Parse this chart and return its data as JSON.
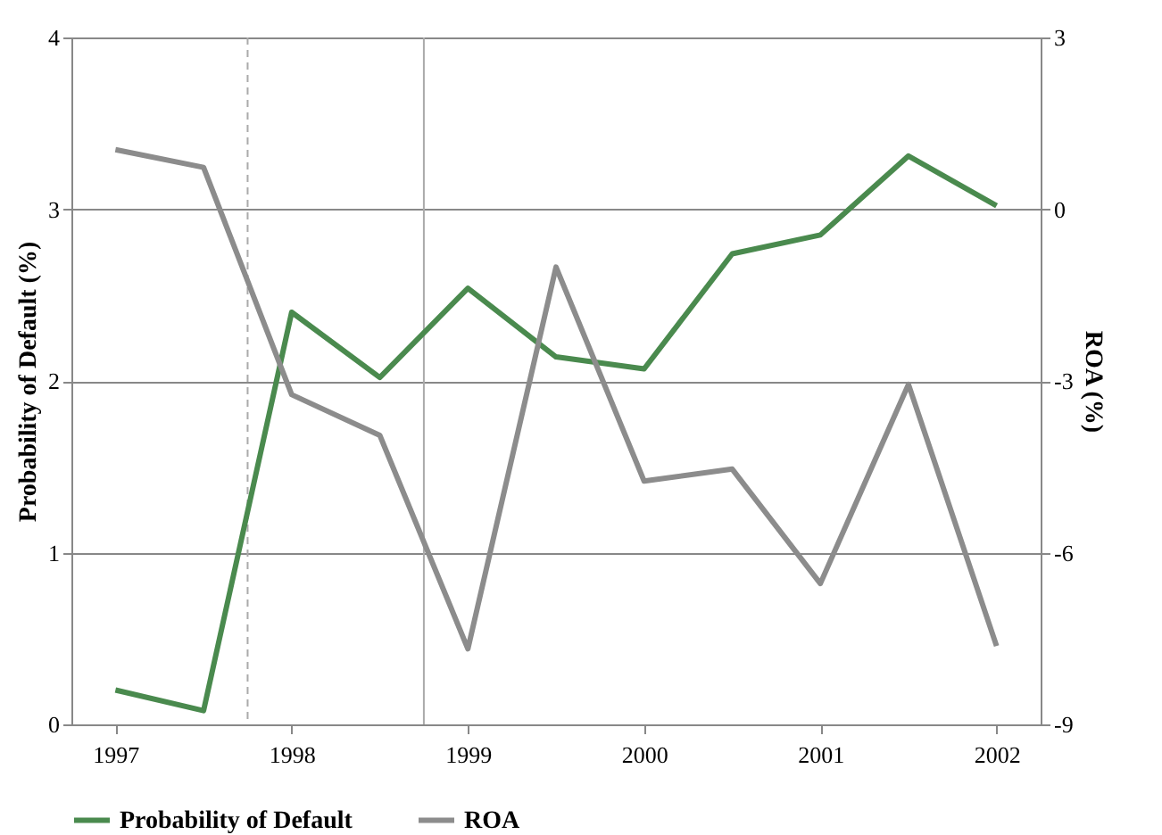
{
  "chart_data": {
    "type": "line",
    "ylabel": "Probability of Default (%)",
    "y2label": "ROA (%)",
    "x": [
      1997,
      1997.5,
      1998,
      1998.5,
      1999,
      1999.5,
      2000,
      2000.5,
      2001,
      2001.5,
      2002
    ],
    "xlim": [
      1996.75,
      2002.25
    ],
    "xticks": [
      1997,
      1998,
      1999,
      2000,
      2001,
      2002
    ],
    "ylim": [
      0,
      4
    ],
    "yticks": [
      0,
      1,
      2,
      3,
      4
    ],
    "y2lim": [
      -9,
      3
    ],
    "y2ticks": [
      -9,
      -6,
      -3,
      0,
      3
    ],
    "series": [
      {
        "name": "Probability of Default",
        "color": "#4a8a4e",
        "values": [
          0.2,
          0.08,
          2.4,
          2.02,
          2.54,
          2.14,
          2.07,
          2.74,
          2.85,
          3.31,
          3.02
        ]
      },
      {
        "name": "ROA",
        "color": "#8c8c8c",
        "axis": "y2",
        "values": [
          1.04,
          0.73,
          -3.24,
          -3.95,
          -7.68,
          -1.01,
          -4.75,
          -4.54,
          -6.54,
          -3.06,
          -7.63
        ]
      }
    ],
    "ref_lines": [
      {
        "axis": "x",
        "value": 1997.75,
        "color": "#aaaaaa",
        "line_style": "dashed"
      },
      {
        "axis": "x",
        "value": 1998.75,
        "color": "#aaaaaa",
        "line_style": "solid"
      }
    ],
    "grid": "y",
    "legend": "bottom",
    "marker": "none",
    "line_style": "solid"
  }
}
